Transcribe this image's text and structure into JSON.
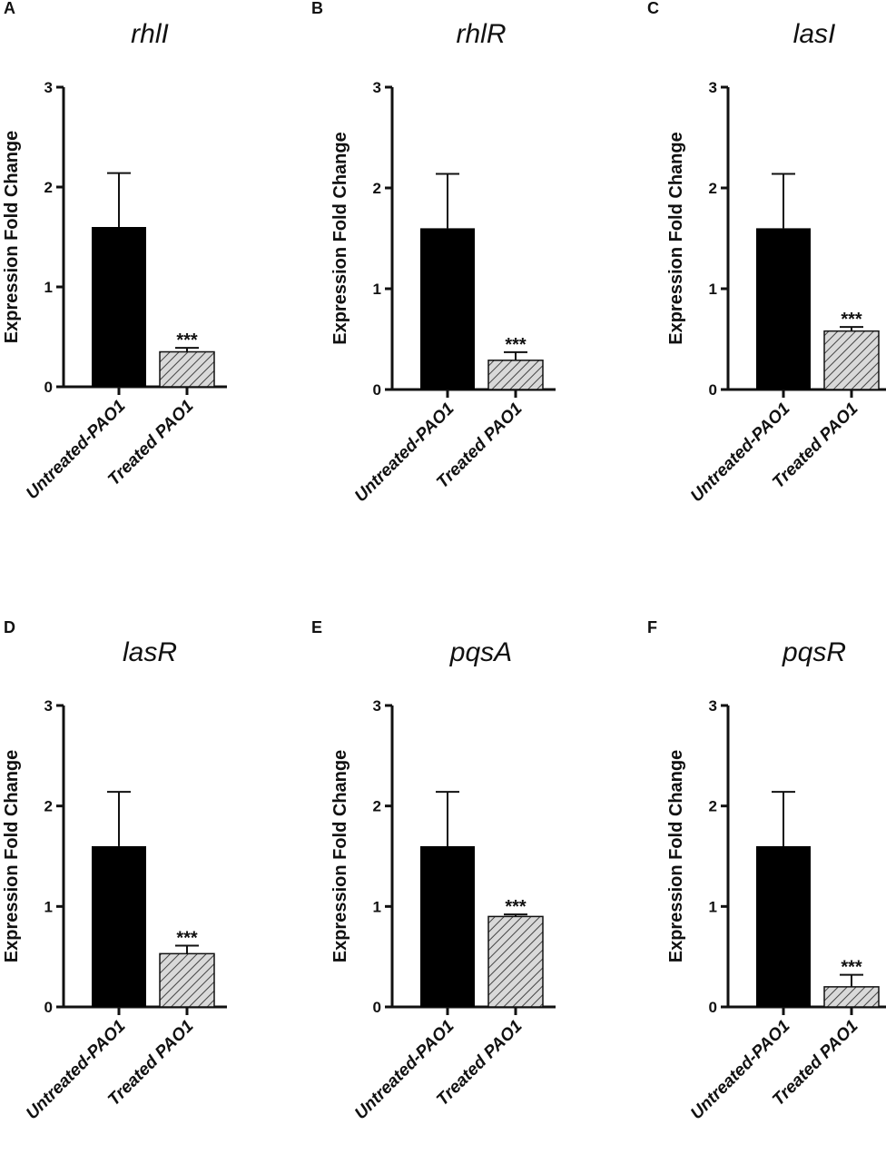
{
  "colors": {
    "untreated_fill": "#000000",
    "treated_fill": "#d9d9d9",
    "hatch": "#444444",
    "axis": "#111111"
  },
  "chart_data": [
    {
      "type": "bar",
      "panel": "A",
      "title": "rhlI",
      "ylabel": "Expression Fold Change",
      "xlabel": "",
      "categories": [
        "Untreated-PAO1",
        "Treated PAO1"
      ],
      "values": [
        1.6,
        0.35
      ],
      "errors": [
        0.54,
        0.04
      ],
      "annotations": [
        "",
        "***"
      ],
      "ylim": [
        0,
        3
      ],
      "yticks": [
        0,
        1,
        2,
        3
      ]
    },
    {
      "type": "bar",
      "panel": "B",
      "title": "rhlR",
      "ylabel": "Expression Fold Change",
      "xlabel": "",
      "categories": [
        "Untreated-PAO1",
        "Treated PAO1"
      ],
      "values": [
        1.6,
        0.29
      ],
      "errors": [
        0.54,
        0.08
      ],
      "annotations": [
        "",
        "***"
      ],
      "ylim": [
        0,
        3
      ],
      "yticks": [
        0,
        1,
        2,
        3
      ]
    },
    {
      "type": "bar",
      "panel": "C",
      "title": "lasI",
      "ylabel": "Expression Fold Change",
      "xlabel": "",
      "categories": [
        "Untreated-PAO1",
        "Treated PAO1"
      ],
      "values": [
        1.6,
        0.58
      ],
      "errors": [
        0.54,
        0.04
      ],
      "annotations": [
        "",
        "***"
      ],
      "ylim": [
        0,
        3
      ],
      "yticks": [
        0,
        1,
        2,
        3
      ]
    },
    {
      "type": "bar",
      "panel": "D",
      "title": "lasR",
      "ylabel": "Expression Fold Change",
      "xlabel": "",
      "categories": [
        "Untreated-PAO1",
        "Treated PAO1"
      ],
      "values": [
        1.6,
        0.53
      ],
      "errors": [
        0.54,
        0.08
      ],
      "annotations": [
        "",
        "***"
      ],
      "ylim": [
        0,
        3
      ],
      "yticks": [
        0,
        1,
        2,
        3
      ]
    },
    {
      "type": "bar",
      "panel": "E",
      "title": "pqsA",
      "ylabel": "Expression Fold Change",
      "xlabel": "",
      "categories": [
        "Untreated-PAO1",
        "Treated PAO1"
      ],
      "values": [
        1.6,
        0.9
      ],
      "errors": [
        0.54,
        0.02
      ],
      "annotations": [
        "",
        "***"
      ],
      "ylim": [
        0,
        3
      ],
      "yticks": [
        0,
        1,
        2,
        3
      ]
    },
    {
      "type": "bar",
      "panel": "F",
      "title": "pqsR",
      "ylabel": "Expression Fold Change",
      "xlabel": "",
      "categories": [
        "Untreated-PAO1",
        "Treated PAO1"
      ],
      "values": [
        1.6,
        0.2
      ],
      "errors": [
        0.54,
        0.12
      ],
      "annotations": [
        "",
        "***"
      ],
      "ylim": [
        0,
        3
      ],
      "yticks": [
        0,
        1,
        2,
        3
      ]
    }
  ]
}
